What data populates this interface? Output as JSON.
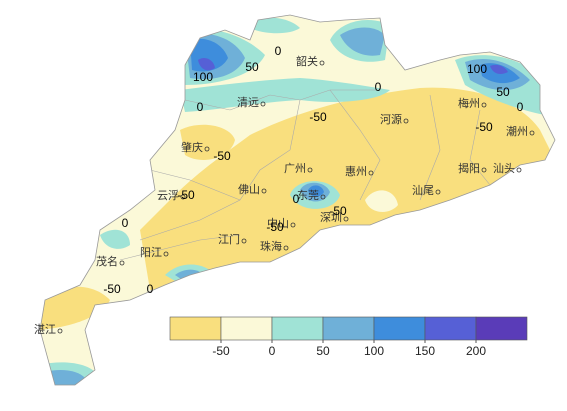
{
  "cities": [
    "韶关",
    "清远",
    "河源",
    "梅州",
    "潮州",
    "肇庆",
    "广州",
    "惠州",
    "揭阳",
    "汕头",
    "云浮",
    "佛山",
    "东莞",
    "汕尾",
    "中山",
    "江门",
    "珠海",
    "深圳",
    "茂名",
    "阳江",
    "湛江"
  ],
  "contour_labels": [
    0,
    50,
    100,
    0,
    0,
    -50,
    100,
    50,
    0,
    -50,
    -50,
    -50,
    0,
    0,
    -50,
    -50,
    -50,
    0
  ],
  "legend": {
    "ticks": [
      -50,
      0,
      50,
      100,
      150,
      200
    ],
    "colors": [
      "#f9df7e",
      "#fbf9d8",
      "#a0e3d6",
      "#6fb0d8",
      "#3e8ddc",
      "#5660d6",
      "#5a3cb8"
    ]
  }
}
